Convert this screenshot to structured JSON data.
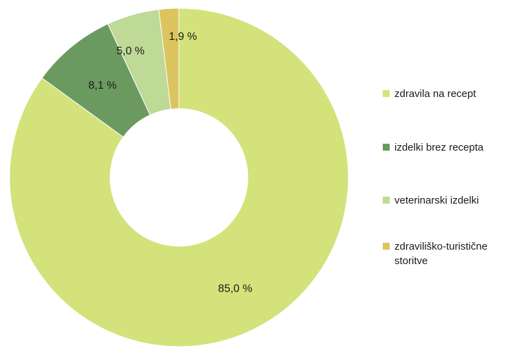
{
  "chart_data": {
    "type": "pie",
    "categories": [
      "zdravila na recept",
      "izdelki brez recepta",
      "veterinarski izdelki",
      "zdravilišk-turistične storitve"
    ],
    "values": [
      85.0,
      8.1,
      5.0,
      1.9
    ],
    "value_labels": [
      "85,0 %",
      "8,1 %",
      "5,0 %",
      "1,9 %"
    ],
    "colors": [
      "#d3e27a",
      "#6b9a60",
      "#bfd997",
      "#dcc55e"
    ],
    "donut": true,
    "legend_placement": "right",
    "legend": [
      {
        "label": "zdravila na recept",
        "color": "#d3e27a"
      },
      {
        "label": "izdelki brez recepta",
        "color": "#6b9a60"
      },
      {
        "label": "veterinarski izdelki",
        "color": "#bfd997"
      },
      {
        "label": "zdraviliško-turistične storitve",
        "color": "#dcc55e"
      }
    ]
  }
}
